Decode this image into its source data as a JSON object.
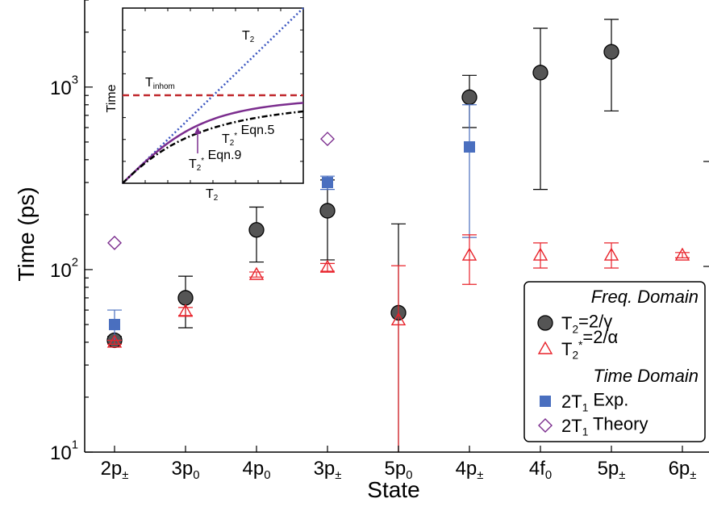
{
  "colors": {
    "t2_marker": "#555555",
    "t2star_marker": "#e8222a",
    "exp_marker": "#4a6fbf",
    "theory_marker": "#7b2d8e",
    "inset_t2": "#3a55c0",
    "inset_tinhom": "#c0282d",
    "inset_eqn9": "#7b2d8e",
    "inset_eqn5": "#000000"
  },
  "chart_data": {
    "type": "scatter",
    "xlabel": "State",
    "ylabel": "Time (ps)",
    "yscale": "log",
    "ylim": [
      10,
      3000
    ],
    "y_ticks": [
      {
        "value": 10,
        "base": "10",
        "exp": "1"
      },
      {
        "value": 100,
        "base": "10",
        "exp": "2"
      },
      {
        "value": 1000,
        "base": "10",
        "exp": "3"
      }
    ],
    "categories": [
      {
        "base": "2p",
        "sub": "±"
      },
      {
        "base": "3p",
        "sub": "0"
      },
      {
        "base": "4p",
        "sub": "0"
      },
      {
        "base": "3p",
        "sub": "±"
      },
      {
        "base": "5p",
        "sub": "0"
      },
      {
        "base": "4p",
        "sub": "±"
      },
      {
        "base": "4f",
        "sub": "0"
      },
      {
        "base": "5p",
        "sub": "±"
      },
      {
        "base": "6p",
        "sub": "±"
      }
    ],
    "legend": {
      "position": "lower-right",
      "group1_title": "Freq. Domain",
      "t2_label": "T",
      "t2_sub": "2",
      "t2_rest": "=2/γ",
      "t2star_label": "T",
      "t2star_sub": "2",
      "t2star_sup": "*",
      "t2star_rest": "=2/α",
      "group2_title": "Time Domain",
      "exp_label": "2T",
      "exp_sub": "1",
      "exp_rest": " Exp.",
      "theory_label": "2T",
      "theory_sub": "1",
      "theory_rest": " Theory"
    },
    "series": [
      {
        "key": "t2",
        "marker": "circle",
        "points": [
          {
            "x": 0,
            "y": 41,
            "lo": 39,
            "hi": 43
          },
          {
            "x": 1,
            "y": 70,
            "lo": 48,
            "hi": 92
          },
          {
            "x": 2,
            "y": 165,
            "lo": 110,
            "hi": 220
          },
          {
            "x": 3,
            "y": 210,
            "lo": 113,
            "hi": 310
          },
          {
            "x": 4,
            "y": 58,
            "lo": 10,
            "hi": 178
          },
          {
            "x": 5,
            "y": 880,
            "lo": 600,
            "hi": 1160
          },
          {
            "x": 6,
            "y": 1200,
            "lo": 275,
            "hi": 2100
          },
          {
            "x": 7,
            "y": 1560,
            "lo": 740,
            "hi": 2350
          }
        ]
      },
      {
        "key": "t2star",
        "marker": "triangle",
        "points": [
          {
            "x": 0,
            "y": 40,
            "lo": 39,
            "hi": 41
          },
          {
            "x": 1,
            "y": 59,
            "lo": 56,
            "hi": 62
          },
          {
            "x": 2,
            "y": 94,
            "lo": 91,
            "hi": 97
          },
          {
            "x": 3,
            "y": 103,
            "lo": 98,
            "hi": 108
          },
          {
            "x": 4,
            "y": 53,
            "lo": 10,
            "hi": 105
          },
          {
            "x": 5,
            "y": 120,
            "lo": 83,
            "hi": 155
          },
          {
            "x": 6,
            "y": 120,
            "lo": 102,
            "hi": 140
          },
          {
            "x": 7,
            "y": 120,
            "lo": 102,
            "hi": 140
          },
          {
            "x": 8,
            "y": 120,
            "lo": 116,
            "hi": 124
          }
        ]
      },
      {
        "key": "exp",
        "marker": "square",
        "points": [
          {
            "x": 0,
            "y": 50,
            "lo": 41,
            "hi": 60
          },
          {
            "x": 3,
            "y": 300,
            "lo": 275,
            "hi": 325
          },
          {
            "x": 5,
            "y": 470,
            "lo": 150,
            "hi": 800
          }
        ]
      },
      {
        "key": "theory",
        "marker": "diamond",
        "points": [
          {
            "x": 0,
            "y": 140
          },
          {
            "x": 3,
            "y": 520
          }
        ]
      }
    ],
    "inset": {
      "ylabel": "Time",
      "xlabel_base": "T",
      "xlabel_sub": "2",
      "t2_base": "T",
      "t2_sub": "2",
      "tinhom_base": "T",
      "tinhom_sub": "inhom",
      "eqn5_base": "T",
      "eqn5_sub": "2",
      "eqn5_sup": "*",
      "eqn5_rest": " Eqn.5",
      "eqn9_base": "T",
      "eqn9_sub": "2",
      "eqn9_sup": "*",
      "eqn9_rest": " Eqn.9"
    }
  }
}
